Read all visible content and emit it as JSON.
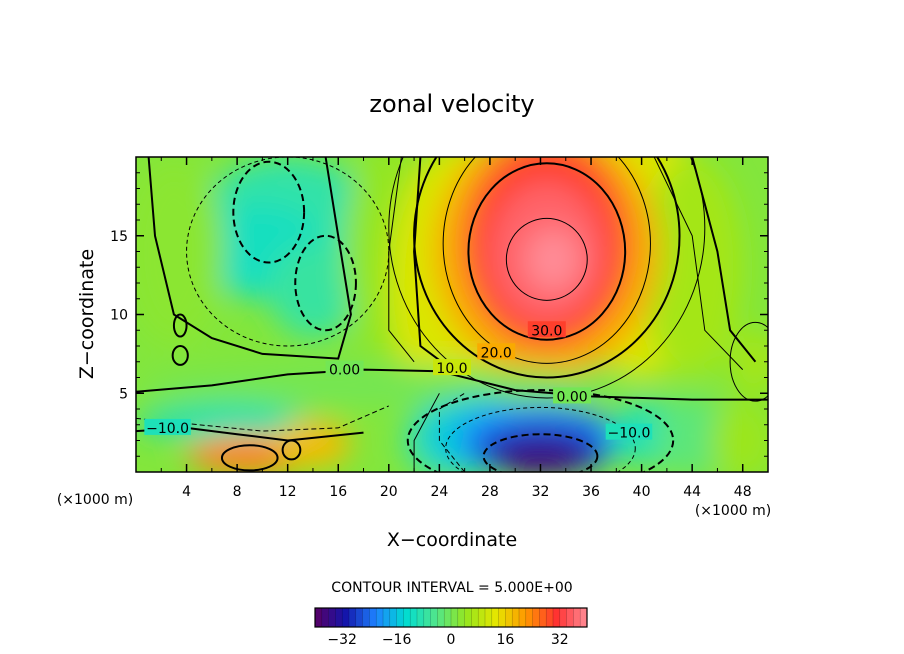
{
  "chart_data": {
    "type": "heatmap",
    "title": "zonal velocity",
    "xlabel": "X−coordinate",
    "ylabel": "Z−coordinate",
    "x_unit": "(×1000 m)",
    "z_unit": "(×1000 m)",
    "xlim": [
      0,
      50
    ],
    "ylim": [
      0,
      20
    ],
    "x_ticks": [
      "4",
      "8",
      "12",
      "16",
      "20",
      "24",
      "28",
      "32",
      "36",
      "40",
      "44",
      "48"
    ],
    "y_ticks": [
      "5",
      "10",
      "15"
    ],
    "contour_interval_text": "CONTOUR INTERVAL = 5.000E+00",
    "contour_labels": [
      {
        "text": "30.0",
        "x": 32.5,
        "z": 9.0
      },
      {
        "text": "20.0",
        "x": 28.5,
        "z": 7.6
      },
      {
        "text": "10.0",
        "x": 25.0,
        "z": 6.6
      },
      {
        "text": "0.00",
        "x": 16.5,
        "z": 6.5
      },
      {
        "text": "0.00",
        "x": 34.5,
        "z": 4.8
      },
      {
        "text": "−10.0",
        "x": 2.5,
        "z": 2.8
      },
      {
        "text": "−10.0",
        "x": 39.0,
        "z": 2.5
      }
    ],
    "features": [
      {
        "name": "jet-max",
        "x": 32.5,
        "z": 13.5,
        "value": 40
      },
      {
        "name": "lower-min",
        "x": 32,
        "z": 1.2,
        "value": -35
      },
      {
        "name": "upper-left-min",
        "x": 10,
        "z": 15,
        "value": -10
      },
      {
        "name": "surface-max",
        "x": 9,
        "z": 1.0,
        "value": 25
      }
    ],
    "colorbar": {
      "range": [
        -40,
        40
      ],
      "ticks": [
        "−32",
        "−16",
        "0",
        "16",
        "32"
      ],
      "tick_values": [
        -32,
        -16,
        0,
        16,
        32
      ],
      "colors": [
        "#5a0064",
        "#1414aa",
        "#1e82ff",
        "#00dcd2",
        "#50e68c",
        "#96e61e",
        "#e6e600",
        "#ff9600",
        "#ff3232",
        "#ff8c96"
      ]
    }
  }
}
